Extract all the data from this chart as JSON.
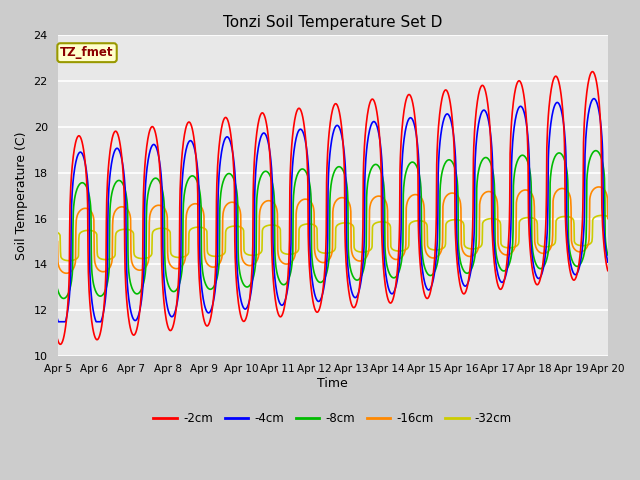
{
  "title": "Tonzi Soil Temperature Set D",
  "xlabel": "Time",
  "ylabel": "Soil Temperature (C)",
  "ylim": [
    10,
    24
  ],
  "xlim": [
    0,
    15
  ],
  "fig_bg": "#cccccc",
  "plot_bg": "#e8e8e8",
  "annotation_text": "TZ_fmet",
  "annotation_color": "#8b0000",
  "annotation_bg": "#ffffcc",
  "annotation_edge": "#999900",
  "legend_entries": [
    "-2cm",
    "-4cm",
    "-8cm",
    "-16cm",
    "-32cm"
  ],
  "colors": [
    "#ff0000",
    "#0000ff",
    "#00bb00",
    "#ff8800",
    "#cccc00"
  ],
  "x_tick_labels": [
    "Apr 5",
    "Apr 6",
    "Apr 7",
    "Apr 8",
    "Apr 9",
    "Apr 10",
    "Apr 11",
    "Apr 12",
    "Apr 13",
    "Apr 14",
    "Apr 15",
    "Apr 16",
    "Apr 17",
    "Apr 18",
    "Apr 19",
    "Apr 20"
  ],
  "x_ticks": [
    0,
    1,
    2,
    3,
    4,
    5,
    6,
    7,
    8,
    9,
    10,
    11,
    12,
    13,
    14,
    15
  ],
  "y_ticks": [
    10,
    12,
    14,
    16,
    18,
    20,
    22,
    24
  ],
  "grid_color": "#ffffff",
  "linewidth": 1.2,
  "figsize": [
    6.4,
    4.8
  ],
  "dpi": 100
}
